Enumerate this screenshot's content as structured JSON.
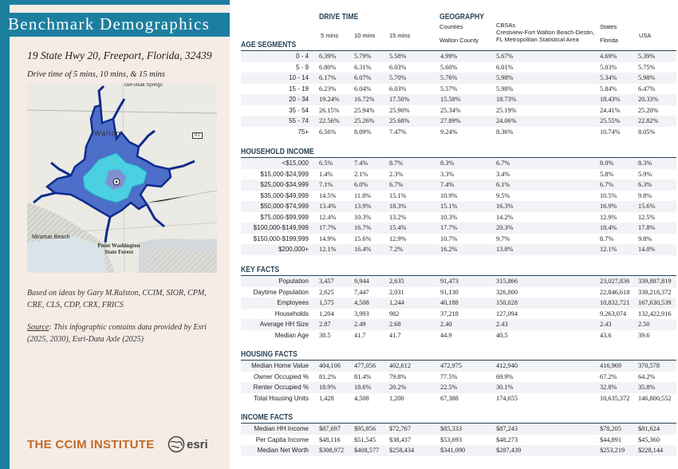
{
  "left": {
    "title": "Benchmark Demographics",
    "address": "19 State Hwy 20, Freeport, Florida, 32439",
    "drive_note": "Drive time of 5 mins, 10 mins, & 15 mins",
    "map": {
      "labels": [
        "DeFuniak Springs",
        "Walton",
        "81",
        "Miramar Beach",
        "Point Washington State Forest"
      ]
    },
    "credits": "Based on ideas by Gary M.Ralston, CCIM, SIOR, CPM, CRE, CLS, CDP, CRX, FRICS",
    "source_label": "Source",
    "source_text": ": This infographic contains data provided by Esri (2025, 2030), Esri-Data Axle (2025)",
    "ccim_logo": "THE CCIM INSTITUTE",
    "esri_logo": "esri"
  },
  "header": {
    "drive_time": "DRIVE TIME",
    "geography": "GEOGRAPHY",
    "cols": [
      "5 mins",
      "10 mins",
      "15 mins"
    ],
    "counties_label": "Counties",
    "counties_value": "Walton County",
    "cbsas_label": "CBSAs",
    "cbsas_value": "Crestview-Fort Walton Beach-Destin, FL Metropolitan Statistical Area",
    "states_label": "States",
    "states_value": "Florida",
    "usa": "USA"
  },
  "sections": [
    {
      "title": "AGE SEGMENTS",
      "rows": [
        {
          "label": "0 - 4",
          "values": [
            "6.39%",
            "5.79%",
            "5.58%",
            "4.99%",
            "5.67%",
            "4.69%",
            "5.39%"
          ]
        },
        {
          "label": "5 - 9",
          "values": [
            "6.80%",
            "6.31%",
            "6.03%",
            "5.60%",
            "6.01%",
            "5.03%",
            "5.75%"
          ]
        },
        {
          "label": "10 - 14",
          "values": [
            "6.17%",
            "6.07%",
            "5.70%",
            "5.76%",
            "5.98%",
            "5.34%",
            "5.98%"
          ]
        },
        {
          "label": "15 - 19",
          "values": [
            "6.23%",
            "6.04%",
            "6.03%",
            "5.57%",
            "5.98%",
            "5.84%",
            "6.47%"
          ]
        },
        {
          "label": "20 - 34",
          "values": [
            "19.24%",
            "16.72%",
            "17.50%",
            "15.58%",
            "18.73%",
            "18.43%",
            "20.33%"
          ]
        },
        {
          "label": "35 - 54",
          "values": [
            "26.15%",
            "25.94%",
            "25.90%",
            "25.34%",
            "25.19%",
            "24.41%",
            "25.20%"
          ]
        },
        {
          "label": "55 - 74",
          "values": [
            "22.56%",
            "25.26%",
            "25.68%",
            "27.89%",
            "24.06%",
            "25.55%",
            "22.82%"
          ]
        },
        {
          "label": "75+",
          "values": [
            "6.56%",
            "8.09%",
            "7.47%",
            "9.24%",
            "8.36%",
            "10.74%",
            "8.05%"
          ]
        }
      ]
    },
    {
      "title": "HOUSEHOLD INCOME",
      "rows": [
        {
          "label": "<$15,000",
          "values": [
            "6.5%",
            "7.4%",
            "8.7%",
            "8.3%",
            "6.7%",
            "8.0%",
            "8.3%"
          ]
        },
        {
          "label": "$15,000-$24,999",
          "values": [
            "1.4%",
            "2.1%",
            "2.3%",
            "3.3%",
            "3.4%",
            "5.8%",
            "5.9%"
          ]
        },
        {
          "label": "$25,000-$34,999",
          "values": [
            "7.1%",
            "6.0%",
            "6.7%",
            "7.4%",
            "6.1%",
            "6.7%",
            "6.3%"
          ]
        },
        {
          "label": "$35,000-$49,999",
          "values": [
            "14.5%",
            "11.8%",
            "15.1%",
            "10.9%",
            "9.5%",
            "10.5%",
            "9.8%"
          ]
        },
        {
          "label": "$50,000-$74,999",
          "values": [
            "13.4%",
            "13.9%",
            "18.3%",
            "15.1%",
            "16.3%",
            "16.9%",
            "15.6%"
          ]
        },
        {
          "label": "$75,000-$99,999",
          "values": [
            "12.4%",
            "10.3%",
            "13.2%",
            "10.3%",
            "14.2%",
            "12.9%",
            "12.5%"
          ]
        },
        {
          "label": "$100,000-$149,999",
          "values": [
            "17.7%",
            "16.7%",
            "15.4%",
            "17.7%",
            "20.3%",
            "18.4%",
            "17.8%"
          ]
        },
        {
          "label": "$150,000-$199,999",
          "values": [
            "14.9%",
            "15.6%",
            "12.9%",
            "10.7%",
            "9.7%",
            "8.7%",
            "9.8%"
          ]
        },
        {
          "label": "$200,000+",
          "values": [
            "12.1%",
            "16.4%",
            "7.2%",
            "16.2%",
            "13.8%",
            "12.1%",
            "14.0%"
          ]
        }
      ]
    },
    {
      "title": "KEY FACTS",
      "rows": [
        {
          "label": "Population",
          "values": [
            "3,457",
            "9,944",
            "2,635",
            "91,473",
            "315,866",
            "23,027,836",
            "339,887,819"
          ]
        },
        {
          "label": "Daytime Population",
          "values": [
            "2,625",
            "7,447",
            "2,031",
            "91,130",
            "326,800",
            "22,846,618",
            "338,218,372"
          ]
        },
        {
          "label": "Employees",
          "values": [
            "1,575",
            "4,508",
            "1,244",
            "40,188",
            "150,028",
            "10,832,721",
            "167,630,539"
          ]
        },
        {
          "label": "Households",
          "values": [
            "1,204",
            "3,993",
            "982",
            "37,218",
            "127,094",
            "9,263,074",
            "132,422,916"
          ]
        },
        {
          "label": "Average HH Size",
          "values": [
            "2.87",
            "2.49",
            "2.68",
            "2.40",
            "2.43",
            "2.43",
            "2.50"
          ]
        },
        {
          "label": "Median Age",
          "values": [
            "38.5",
            "41.7",
            "41.7",
            "44.9",
            "40.5",
            "43.6",
            "39.6"
          ]
        }
      ]
    },
    {
      "title": "HOUSING FACTS",
      "rows": [
        {
          "label": "Median Home Value",
          "values": [
            "404,106",
            "477,056",
            "402,612",
            "472,975",
            "412,940",
            "416,969",
            "370,578"
          ]
        },
        {
          "label": "Owner Occupied %",
          "values": [
            "81.2%",
            "81.4%",
            "79.8%",
            "77.5%",
            "69.9%",
            "67.2%",
            "64.2%"
          ]
        },
        {
          "label": "Renter Occupied %",
          "values": [
            "18.9%",
            "18.6%",
            "20.2%",
            "22.5%",
            "30.1%",
            "32.8%",
            "35.8%"
          ]
        },
        {
          "label": "Total Housing Units",
          "values": [
            "1,428",
            "4,508",
            "1,200",
            "67,388",
            "174,655",
            "10,635,372",
            "146,800,552"
          ]
        }
      ]
    },
    {
      "title": "INCOME FACTS",
      "rows": [
        {
          "label": "Median HH Income",
          "values": [
            "$87,697",
            "$95,856",
            "$72,767",
            "$85,333",
            "$87,243",
            "$78,205",
            "$81,624"
          ]
        },
        {
          "label": "Per Capita Income",
          "values": [
            "$48,116",
            "$51,545",
            "$38,437",
            "$53,693",
            "$48,273",
            "$44,891",
            "$45,360"
          ]
        },
        {
          "label": "Median Net Worth",
          "values": [
            "$308,972",
            "$408,577",
            "$258,434",
            "$341,090",
            "$287,439",
            "$253,219",
            "$228,144"
          ]
        }
      ]
    }
  ]
}
